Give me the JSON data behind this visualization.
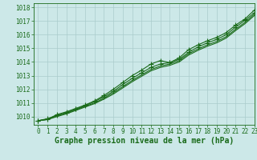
{
  "title": "Graphe pression niveau de la mer (hPa)",
  "bg_color": "#cce8e8",
  "grid_color": "#aacccc",
  "line_color": "#1a6b1a",
  "xlim": [
    -0.5,
    23
  ],
  "ylim": [
    1009.4,
    1018.3
  ],
  "yticks": [
    1010,
    1011,
    1012,
    1013,
    1014,
    1015,
    1016,
    1017,
    1018
  ],
  "xticks": [
    0,
    1,
    2,
    3,
    4,
    5,
    6,
    7,
    8,
    9,
    10,
    11,
    12,
    13,
    14,
    15,
    16,
    17,
    18,
    19,
    20,
    21,
    22,
    23
  ],
  "series": [
    [
      1009.7,
      1009.8,
      1010.15,
      1010.35,
      1010.6,
      1010.85,
      1011.15,
      1011.55,
      1012.0,
      1012.5,
      1013.0,
      1013.4,
      1013.85,
      1014.1,
      1013.95,
      1014.3,
      1014.9,
      1015.25,
      1015.55,
      1015.8,
      1016.15,
      1016.7,
      1017.15,
      1017.8
    ],
    [
      1009.7,
      1009.85,
      1010.1,
      1010.3,
      1010.55,
      1010.8,
      1011.1,
      1011.45,
      1011.85,
      1012.35,
      1012.8,
      1013.2,
      1013.6,
      1013.85,
      1013.95,
      1014.2,
      1014.7,
      1015.1,
      1015.4,
      1015.65,
      1016.0,
      1016.55,
      1017.05,
      1017.6
    ],
    [
      1009.7,
      1009.8,
      1010.05,
      1010.25,
      1010.5,
      1010.75,
      1011.0,
      1011.35,
      1011.75,
      1012.2,
      1012.65,
      1013.05,
      1013.45,
      1013.7,
      1013.85,
      1014.1,
      1014.6,
      1014.95,
      1015.25,
      1015.5,
      1015.85,
      1016.4,
      1016.9,
      1017.5
    ],
    [
      1009.7,
      1009.78,
      1010.0,
      1010.2,
      1010.45,
      1010.7,
      1010.95,
      1011.28,
      1011.65,
      1012.1,
      1012.55,
      1012.95,
      1013.35,
      1013.6,
      1013.75,
      1014.0,
      1014.5,
      1014.85,
      1015.15,
      1015.4,
      1015.75,
      1016.3,
      1016.8,
      1017.4
    ]
  ],
  "marker_series": [
    0,
    1
  ],
  "marker": "+",
  "marker_size": 4,
  "marker_lw": 0.8,
  "linewidth": 0.8,
  "title_fontsize": 7,
  "tick_fontsize": 5.5
}
